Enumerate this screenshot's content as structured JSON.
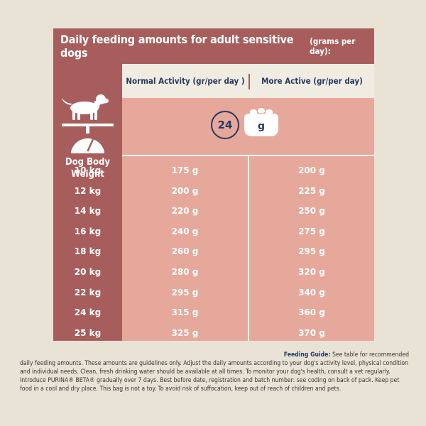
{
  "title": {
    "main": "Daily feeding amounts for adult sensitive dogs",
    "sub": "(grams per day):"
  },
  "columns": {
    "normal": "Normal Activity (gr/per day )",
    "active": "More Active (gr/per day)"
  },
  "icons": {
    "clock_label": "24",
    "bowl_label": "g",
    "clock_icon": "clock-icon",
    "bowl_icon": "food-bowl-icon",
    "dog_icon": "dog-on-scale-icon"
  },
  "weight_label": "Dog Body Weight",
  "rows": [
    {
      "weight": "10 kg",
      "normal": "175 g",
      "active": "200 g"
    },
    {
      "weight": "12 kg",
      "normal": "200 g",
      "active": "225 g"
    },
    {
      "weight": "14 kg",
      "normal": "220 g",
      "active": "250 g"
    },
    {
      "weight": "16 kg",
      "normal": "240 g",
      "active": "275 g"
    },
    {
      "weight": "18 kg",
      "normal": "260 g",
      "active": "295 g"
    },
    {
      "weight": "20 kg",
      "normal": "280 g",
      "active": "320 g"
    },
    {
      "weight": "22 kg",
      "normal": "295 g",
      "active": "340 g"
    },
    {
      "weight": "24 kg",
      "normal": "315 g",
      "active": "360 g"
    },
    {
      "weight": "25 kg",
      "normal": "325 g",
      "active": "370 g"
    }
  ],
  "guide": {
    "heading": "Feeding Guide:",
    "lead": " See table for recommended",
    "body": "daily feeding amounts. These amounts are guidelines only. Adjust the daily amounts according to your dog's activity level, physical condition and individual needs. Clean, fresh drinking water should be available at all times. To monitor your dog's health, consult a vet regularly. Introduce PURINA® BETA® gradually over 7 days. Best before date, registration and batch number: see coding on back of pack. Keep pet food in a cool and dry place. This bag is not a toy. To avoid risk of suffocation, keep out of reach of children and pets."
  },
  "colors": {
    "maroon": "#a85d5d",
    "salmon": "#e6a89b",
    "cream": "#f1ece2",
    "navy": "#243a60",
    "background": "#e9e3d6"
  }
}
